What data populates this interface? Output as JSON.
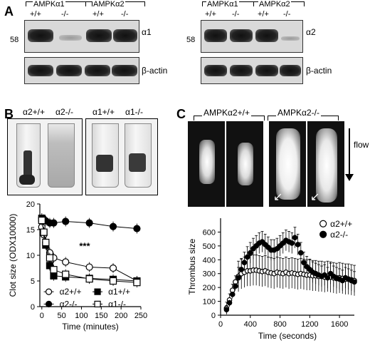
{
  "panels": {
    "a": "A",
    "b": "B",
    "c": "C"
  },
  "panel_a": {
    "left": {
      "groups": [
        "AMPKα1",
        "AMPKα2"
      ],
      "genotypes": [
        "+/+",
        "-/-",
        "+/+",
        "-/-"
      ],
      "marker": "58",
      "band_label": "α1",
      "actin_label": "β-actin"
    },
    "right": {
      "groups": [
        "AMPKα1",
        "AMPKα2"
      ],
      "genotypes": [
        "+/+",
        "-/-",
        "+/+",
        "-/-"
      ],
      "marker": "58",
      "band_label": "α2",
      "actin_label": "β-actin"
    }
  },
  "panel_b_photos": [
    "α2+/+",
    "α2-/-",
    "α1+/+",
    "α1-/-"
  ],
  "panel_c_header": {
    "groups": [
      "AMPKα2+/+",
      "AMPKα2-/-"
    ],
    "flow_label": "flow"
  },
  "chart_data": [
    {
      "type": "line",
      "xlabel": "Time (minutes)",
      "ylabel": "Clot size (ODX10000)",
      "xlim": [
        -5,
        250
      ],
      "ylim": [
        0,
        20
      ],
      "xticks": [
        "0",
        "50",
        "100",
        "150",
        "200",
        "250"
      ],
      "yticks": [
        "0",
        "5",
        "10",
        "15",
        "20"
      ],
      "annotation": "***",
      "legend": [
        "α2+/+",
        "α1+/+",
        "α2-/-",
        "α1-/-"
      ],
      "series": [
        {
          "name": "α2+/+",
          "marker": "open-circle",
          "x": [
            0,
            5,
            10,
            20,
            30,
            60,
            120,
            180,
            240
          ],
          "y": [
            15.5,
            14.0,
            12.5,
            10.5,
            9.5,
            8.7,
            7.7,
            7.5,
            5.0
          ]
        },
        {
          "name": "α2-/-",
          "marker": "filled-circle",
          "x": [
            0,
            5,
            10,
            20,
            30,
            60,
            120,
            180,
            240
          ],
          "y": [
            17.2,
            17.0,
            16.7,
            16.3,
            16.3,
            16.6,
            16.3,
            15.6,
            15.2
          ]
        },
        {
          "name": "α1+/+",
          "marker": "filled-square",
          "x": [
            0,
            5,
            10,
            20,
            30,
            60,
            120,
            180,
            240
          ],
          "y": [
            17.2,
            14.5,
            12.0,
            8.0,
            6.0,
            5.8,
            5.5,
            5.3,
            5.0
          ]
        },
        {
          "name": "α1-/-",
          "marker": "open-square",
          "x": [
            0,
            5,
            10,
            20,
            30,
            60,
            120,
            180,
            240
          ],
          "y": [
            16.8,
            14.5,
            12.5,
            9.5,
            7.2,
            6.3,
            5.4,
            5.0,
            4.7
          ]
        }
      ]
    },
    {
      "type": "scatter",
      "xlabel": "Time (seconds)",
      "ylabel": "Thrombus size",
      "xlim": [
        0,
        1800
      ],
      "ylim": [
        0,
        700
      ],
      "xticks": [
        "0",
        "400",
        "800",
        "1200",
        "1600"
      ],
      "yticks": [
        "0",
        "100",
        "200",
        "300",
        "400",
        "500",
        "600"
      ],
      "legend": [
        "α2+/+",
        "α2-/-"
      ],
      "series": [
        {
          "name": "α2+/+",
          "marker": "open-circle",
          "x": [
            80,
            120,
            160,
            200,
            240,
            280,
            320,
            360,
            400,
            440,
            480,
            520,
            560,
            600,
            640,
            680,
            720,
            760,
            800,
            840,
            880,
            920,
            960,
            1000,
            1040,
            1080,
            1120,
            1160,
            1200,
            1240,
            1280,
            1320,
            1360,
            1400,
            1440,
            1480,
            1520,
            1560,
            1600,
            1640,
            1680,
            1720,
            1760,
            1800
          ],
          "y": [
            50,
            110,
            180,
            240,
            280,
            300,
            310,
            320,
            320,
            325,
            325,
            320,
            315,
            320,
            310,
            305,
            300,
            310,
            305,
            300,
            310,
            300,
            305,
            300,
            295,
            300,
            295,
            290,
            290,
            285,
            285,
            280,
            280,
            275,
            280,
            275,
            270,
            265,
            270,
            265,
            260,
            260,
            255,
            250
          ]
        },
        {
          "name": "α2-/-",
          "marker": "filled-circle",
          "x": [
            80,
            120,
            160,
            200,
            240,
            280,
            320,
            360,
            400,
            440,
            480,
            520,
            560,
            600,
            640,
            680,
            720,
            760,
            800,
            840,
            880,
            920,
            960,
            1000,
            1040,
            1080,
            1120,
            1160,
            1200,
            1240,
            1280,
            1320,
            1360,
            1400,
            1440,
            1480,
            1520,
            1560,
            1600,
            1640,
            1680,
            1720,
            1760,
            1800
          ],
          "y": [
            40,
            90,
            150,
            210,
            270,
            330,
            380,
            420,
            450,
            480,
            500,
            520,
            530,
            510,
            490,
            470,
            470,
            480,
            500,
            520,
            540,
            530,
            520,
            560,
            510,
            450,
            380,
            350,
            330,
            310,
            300,
            290,
            280,
            290,
            270,
            300,
            280,
            270,
            260,
            250,
            270,
            260,
            250,
            240
          ]
        }
      ]
    }
  ]
}
